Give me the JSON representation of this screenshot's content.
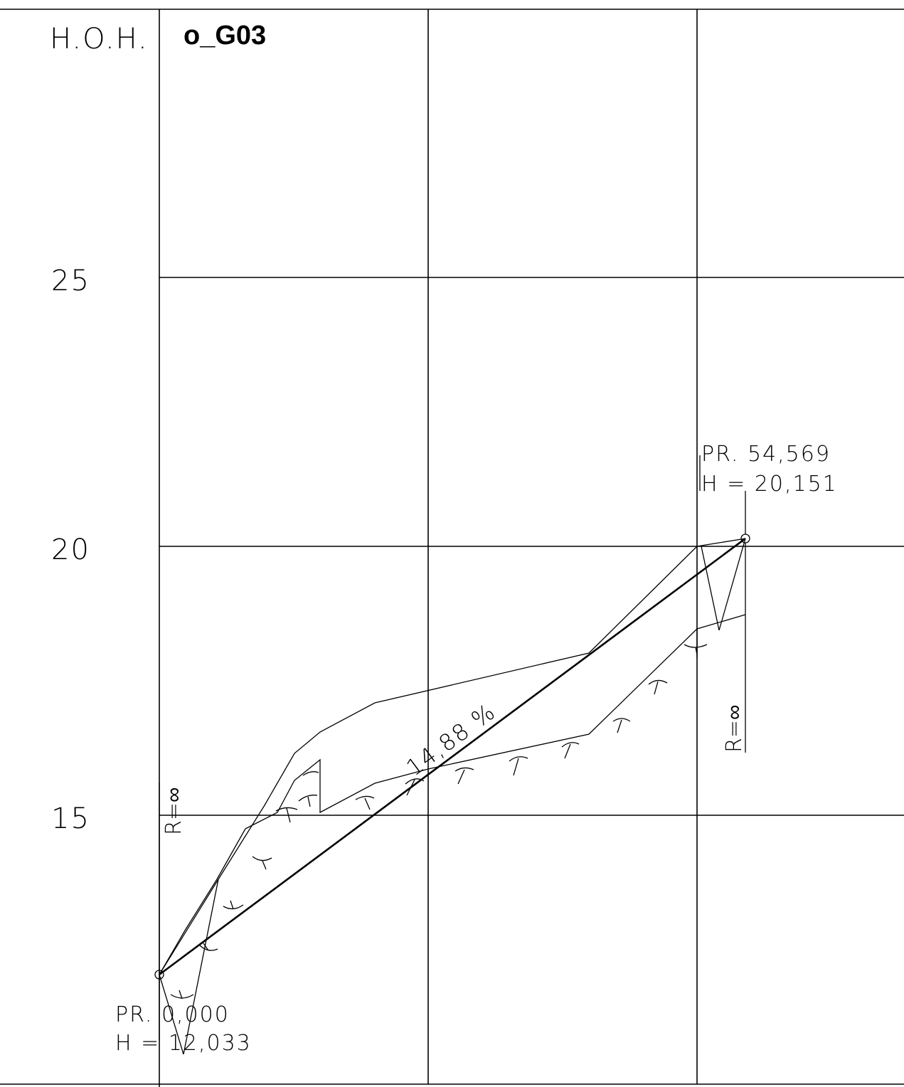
{
  "header": {
    "axis_label": "H.O.H.",
    "profile_id": "o_G03"
  },
  "y_axis": {
    "ticks": [
      "25",
      "20",
      "15"
    ]
  },
  "start_point": {
    "station_line": "PR. 0,000",
    "height_line": "H = 12,033",
    "radius_label": "R=∞"
  },
  "end_point": {
    "station_line": "PR. 54,569",
    "height_line": "H = 20,151",
    "radius_label": "R=∞"
  },
  "gradient": {
    "label": "14,88 %"
  },
  "colors": {
    "line": "#000000",
    "background": "#ffffff"
  }
}
